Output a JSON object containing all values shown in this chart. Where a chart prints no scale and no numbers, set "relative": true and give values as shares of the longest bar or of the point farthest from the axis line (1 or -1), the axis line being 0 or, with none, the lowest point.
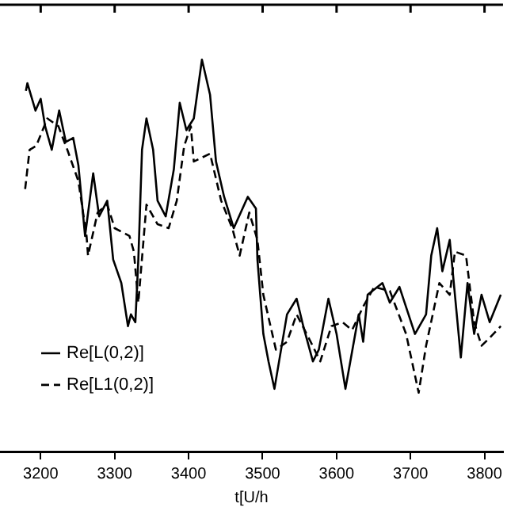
{
  "chart_data": {
    "type": "line",
    "relative": true,
    "xlabel": "t[U/h",
    "xlim": [
      3145,
      3825
    ],
    "xticks": [
      3200,
      3300,
      3400,
      3500,
      3600,
      3700,
      3800
    ],
    "legend": "left",
    "grid": false,
    "marker": "none",
    "series": [
      {
        "name": "Re[L(0,2)]",
        "color": "#000000",
        "line_style": "solid",
        "x": [
          3180,
          3182,
          3193,
          3200,
          3206,
          3215,
          3225,
          3234,
          3244,
          3251,
          3260,
          3271,
          3279,
          3290,
          3298,
          3309,
          3318,
          3322,
          3328,
          3332,
          3337,
          3343,
          3352,
          3358,
          3369,
          3380,
          3388,
          3397,
          3407,
          3418,
          3429,
          3437,
          3448,
          3461,
          3480,
          3491,
          3493,
          3501,
          3508,
          3516,
          3533,
          3546,
          3555,
          3568,
          3576,
          3589,
          3600,
          3612,
          3630,
          3636,
          3642,
          3662,
          3672,
          3685,
          3706,
          3721,
          3728,
          3736,
          3743,
          3753,
          3768,
          3777,
          3786,
          3796,
          3807,
          3822
        ],
        "values": [
          0.92,
          0.94,
          0.87,
          0.9,
          0.83,
          0.77,
          0.87,
          0.79,
          0.8,
          0.73,
          0.55,
          0.71,
          0.6,
          0.64,
          0.49,
          0.43,
          0.32,
          0.35,
          0.33,
          0.49,
          0.77,
          0.85,
          0.77,
          0.64,
          0.6,
          0.72,
          0.89,
          0.82,
          0.85,
          1.0,
          0.91,
          0.74,
          0.65,
          0.57,
          0.65,
          0.62,
          0.49,
          0.3,
          0.23,
          0.16,
          0.35,
          0.39,
          0.32,
          0.23,
          0.26,
          0.39,
          0.3,
          0.16,
          0.35,
          0.28,
          0.4,
          0.43,
          0.38,
          0.42,
          0.3,
          0.35,
          0.5,
          0.57,
          0.46,
          0.54,
          0.24,
          0.43,
          0.3,
          0.4,
          0.33,
          0.4
        ]
      },
      {
        "name": "Re[L1(0,2)]",
        "color": "#000000",
        "line_style": "dashed",
        "x": [
          3179,
          3185,
          3194,
          3209,
          3224,
          3236,
          3251,
          3262,
          3264,
          3277,
          3290,
          3300,
          3320,
          3326,
          3332,
          3343,
          3358,
          3373,
          3384,
          3394,
          3403,
          3407,
          3429,
          3444,
          3459,
          3469,
          3482,
          3493,
          3501,
          3518,
          3533,
          3546,
          3565,
          3578,
          3593,
          3608,
          3621,
          3636,
          3651,
          3672,
          3694,
          3711,
          3721,
          3739,
          3753,
          3760,
          3775,
          3786,
          3796,
          3807,
          3822
        ],
        "values": [
          0.67,
          0.77,
          0.78,
          0.85,
          0.83,
          0.77,
          0.69,
          0.55,
          0.5,
          0.61,
          0.63,
          0.57,
          0.55,
          0.51,
          0.38,
          0.63,
          0.58,
          0.57,
          0.64,
          0.78,
          0.83,
          0.74,
          0.76,
          0.64,
          0.57,
          0.5,
          0.61,
          0.54,
          0.4,
          0.26,
          0.28,
          0.35,
          0.28,
          0.23,
          0.32,
          0.33,
          0.31,
          0.37,
          0.42,
          0.41,
          0.3,
          0.15,
          0.27,
          0.43,
          0.4,
          0.51,
          0.5,
          0.33,
          0.27,
          0.29,
          0.32
        ]
      }
    ]
  }
}
